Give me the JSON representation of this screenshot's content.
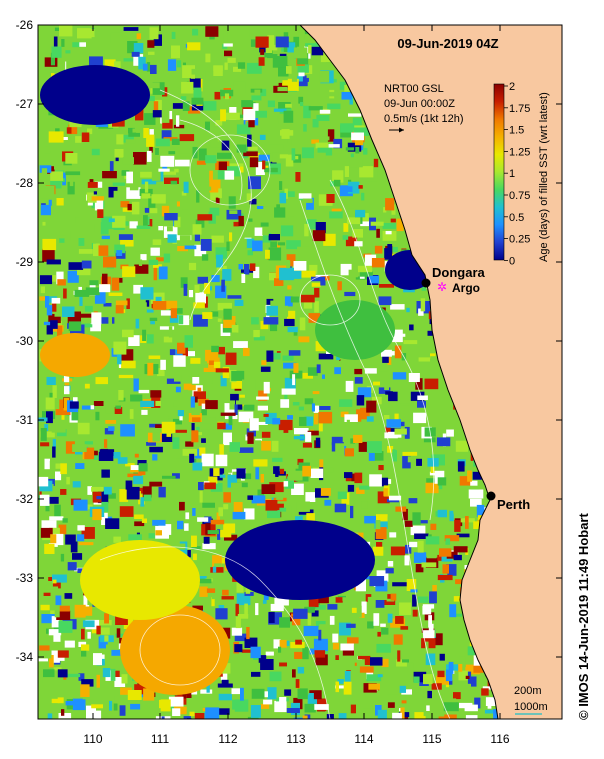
{
  "title": "09-Jun-2019 04Z",
  "product": {
    "line1": "NRT00 GSL",
    "line2": "09-Jun 00:00Z",
    "line3": "0.5m/s (1kt 12h)"
  },
  "colorbar": {
    "label": "Age (days) of filled SST (wrt latest)",
    "ticks": [
      "2",
      "1.75",
      "1.5",
      "1.25",
      "1",
      "0.75",
      "0.5",
      "0.25",
      "0"
    ],
    "colors": [
      "#8b0000",
      "#c81e00",
      "#f07800",
      "#f5b000",
      "#e8e800",
      "#a8e830",
      "#48d860",
      "#20c0d0",
      "#1e90ff",
      "#2040d0",
      "#00008b"
    ]
  },
  "places": [
    {
      "name": "Dongara",
      "marker": "black-circle"
    },
    {
      "name": "Argo",
      "marker": "magenta-star"
    },
    {
      "name": "Perth",
      "marker": "black-circle"
    }
  ],
  "axes": {
    "lat_labels": [
      "-26",
      "-27",
      "-28",
      "-29",
      "-30",
      "-31",
      "-32",
      "-33",
      "-34"
    ],
    "lon_labels": [
      "110",
      "111",
      "112",
      "113",
      "114",
      "115",
      "116"
    ]
  },
  "bathymetry_legend": {
    "line1": "200m",
    "line2": "1000m"
  },
  "copyright": "© IMOS 14-Jun-2019 11:49 Hobart",
  "colors": {
    "land": "#f8c8a0",
    "missing": "#ffffff"
  }
}
